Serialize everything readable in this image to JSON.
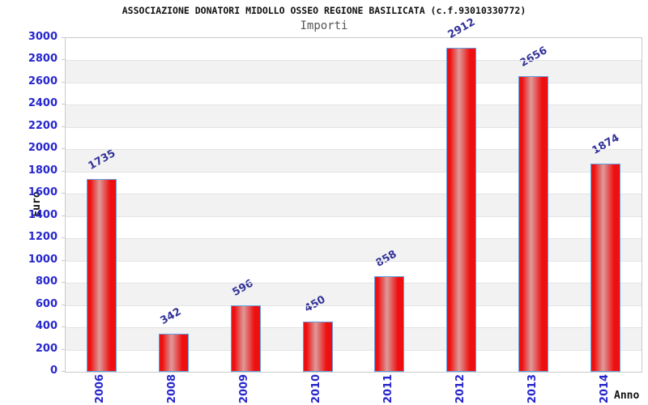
{
  "header": {
    "title": "ASSOCIAZIONE DONATORI MIDOLLO OSSEO REGIONE BASILICATA (c.f.93010330772)",
    "subtitle": "Importi"
  },
  "chart_data": {
    "type": "bar",
    "title": "ASSOCIAZIONE DONATORI MIDOLLO OSSEO REGIONE BASILICATA (c.f.93010330772)",
    "subtitle": "Importi",
    "categories": [
      "2006",
      "2008",
      "2009",
      "2010",
      "2011",
      "2012",
      "2013",
      "2014"
    ],
    "values": [
      1735,
      342,
      596,
      450,
      858,
      2912,
      2656,
      1874
    ],
    "xlabel": "Anno",
    "ylabel": "Euro",
    "ylim": [
      0,
      3000
    ],
    "ytick_step": 200,
    "legend": "none",
    "grid": "horizontal-bands-alternating",
    "bar_value_labels_rotated_deg": -30,
    "x_tick_labels_rotated_deg": -90,
    "colors": {
      "bar_fill": "#ee1010",
      "bar_highlight": "#dd9b9b",
      "bar_border": "#62a0e0",
      "tick_label": "#2626cf",
      "value_label": "#333399",
      "band_gray": "#f2f2f2",
      "grid_line": "#e3e3e3",
      "plot_border": "#c9c9c9",
      "title_color": "#111111",
      "subtitle_color": "#555555"
    }
  }
}
